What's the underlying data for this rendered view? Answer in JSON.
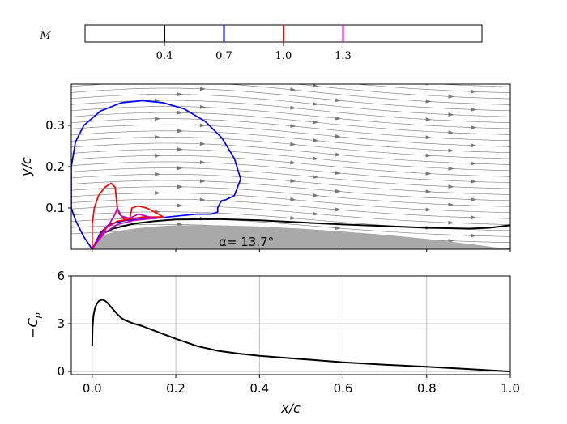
{
  "colorbar": {
    "label": "M",
    "entries": [
      {
        "value": 0.4,
        "label": "0.4",
        "color": "#000000"
      },
      {
        "value": 0.7,
        "label": "0.7",
        "color": "#0000ff"
      },
      {
        "value": 1.0,
        "label": "1.0",
        "color": "#ff0000"
      },
      {
        "value": 1.3,
        "label": "1.3",
        "color": "#bf00bf"
      }
    ],
    "range": [
      0.0,
      2.0
    ]
  },
  "chart_data": [
    {
      "type": "line",
      "title": "",
      "xlabel": "",
      "ylabel": "y/c",
      "xlim": [
        -0.05,
        1.0
      ],
      "ylim": [
        0.0,
        0.4
      ],
      "xticks": [
        0.0,
        0.2,
        0.4,
        0.6,
        0.8,
        1.0
      ],
      "yticks": [
        0.1,
        0.2,
        0.3
      ],
      "ytick_labels": [
        "0.1",
        "0.2",
        "0.3"
      ],
      "annotation": "α= 13.7°",
      "airfoil_color": "#a9a9a9",
      "streamline_color": "#555555",
      "airfoil_upper": [
        [
          0.0,
          0.0
        ],
        [
          0.01,
          0.022
        ],
        [
          0.03,
          0.035
        ],
        [
          0.06,
          0.044
        ],
        [
          0.1,
          0.05
        ],
        [
          0.15,
          0.055
        ],
        [
          0.2,
          0.058
        ],
        [
          0.3,
          0.058
        ],
        [
          0.4,
          0.055
        ],
        [
          0.5,
          0.05
        ],
        [
          0.6,
          0.043
        ],
        [
          0.7,
          0.035
        ],
        [
          0.8,
          0.025
        ],
        [
          0.9,
          0.013
        ],
        [
          1.0,
          0.0
        ]
      ],
      "series": [
        {
          "mach": 0.4,
          "color": "#000000",
          "points": [
            [
              0.0,
              0.0
            ],
            [
              0.02,
              0.035
            ],
            [
              0.05,
              0.05
            ],
            [
              0.1,
              0.062
            ],
            [
              0.15,
              0.068
            ],
            [
              0.2,
              0.072
            ],
            [
              0.3,
              0.073
            ],
            [
              0.4,
              0.07
            ],
            [
              0.5,
              0.065
            ],
            [
              0.6,
              0.06
            ],
            [
              0.7,
              0.056
            ],
            [
              0.8,
              0.052
            ],
            [
              0.9,
              0.05
            ],
            [
              0.95,
              0.052
            ],
            [
              1.0,
              0.058
            ]
          ]
        },
        {
          "mach": 0.7,
          "color": "#0000ff",
          "points": [
            [
              0.0,
              0.0
            ],
            [
              -0.02,
              0.03
            ],
            [
              -0.04,
              0.07
            ],
            [
              -0.05,
              0.1
            ],
            [
              -0.05,
              0.14
            ],
            [
              -0.05,
              0.2
            ],
            [
              -0.04,
              0.26
            ],
            [
              -0.02,
              0.3
            ],
            [
              0.02,
              0.335
            ],
            [
              0.07,
              0.355
            ],
            [
              0.12,
              0.36
            ],
            [
              0.17,
              0.355
            ],
            [
              0.22,
              0.34
            ],
            [
              0.27,
              0.31
            ],
            [
              0.31,
              0.27
            ],
            [
              0.34,
              0.22
            ],
            [
              0.355,
              0.17
            ],
            [
              0.34,
              0.13
            ],
            [
              0.32,
              0.12
            ],
            [
              0.31,
              0.118
            ],
            [
              0.305,
              0.11
            ],
            [
              0.3,
              0.1
            ],
            [
              0.3,
              0.09
            ],
            [
              0.285,
              0.085
            ],
            [
              0.25,
              0.085
            ],
            [
              0.2,
              0.08
            ],
            [
              0.15,
              0.075
            ],
            [
              0.08,
              0.07
            ],
            [
              0.04,
              0.06
            ],
            [
              0.02,
              0.04
            ],
            [
              0.0,
              0.0
            ]
          ]
        },
        {
          "mach": 1.0,
          "color": "#ff0000",
          "points": [
            [
              0.0,
              0.0
            ],
            [
              0.0,
              0.06
            ],
            [
              0.005,
              0.1
            ],
            [
              0.015,
              0.13
            ],
            [
              0.03,
              0.15
            ],
            [
              0.045,
              0.16
            ],
            [
              0.055,
              0.15
            ],
            [
              0.06,
              0.1
            ],
            [
              0.065,
              0.085
            ],
            [
              0.08,
              0.07
            ],
            [
              0.09,
              0.075
            ],
            [
              0.095,
              0.1
            ],
            [
              0.11,
              0.105
            ],
            [
              0.13,
              0.1
            ],
            [
              0.15,
              0.09
            ],
            [
              0.17,
              0.078
            ],
            [
              0.12,
              0.078
            ],
            [
              0.06,
              0.068
            ],
            [
              0.03,
              0.05
            ],
            [
              0.0,
              0.0
            ]
          ]
        },
        {
          "mach": 1.3,
          "color": "#bf00bf",
          "points": [
            [
              0.0,
              0.0
            ],
            [
              0.02,
              0.03
            ],
            [
              0.04,
              0.06
            ],
            [
              0.055,
              0.085
            ],
            [
              0.06,
              0.1
            ],
            [
              0.07,
              0.08
            ],
            [
              0.09,
              0.075
            ],
            [
              0.1,
              0.08
            ],
            [
              0.11,
              0.085
            ],
            [
              0.13,
              0.08
            ],
            [
              0.15,
              0.075
            ],
            [
              0.1,
              0.07
            ],
            [
              0.06,
              0.06
            ],
            [
              0.03,
              0.04
            ],
            [
              0.01,
              0.015
            ],
            [
              0.0,
              0.0
            ]
          ]
        }
      ]
    },
    {
      "type": "line",
      "title": "",
      "xlabel": "x/c",
      "ylabel": "−C_p",
      "xlim": [
        -0.05,
        1.0
      ],
      "ylim": [
        -0.2,
        6.0
      ],
      "grid": true,
      "xticks": [
        0.0,
        0.2,
        0.4,
        0.6,
        0.8,
        1.0
      ],
      "xtick_labels": [
        "0.0",
        "0.2",
        "0.4",
        "0.6",
        "0.8",
        "1.0"
      ],
      "yticks": [
        0,
        3,
        6
      ],
      "ytick_labels": [
        "0",
        "3",
        "6"
      ],
      "series": [
        {
          "color": "#000000",
          "x": [
            0.0,
            0.001,
            0.003,
            0.006,
            0.01,
            0.015,
            0.02,
            0.025,
            0.03,
            0.035,
            0.04,
            0.05,
            0.06,
            0.07,
            0.08,
            0.1,
            0.12,
            0.15,
            0.2,
            0.25,
            0.3,
            0.35,
            0.4,
            0.5,
            0.6,
            0.7,
            0.8,
            0.9,
            1.0
          ],
          "y": [
            1.6,
            2.8,
            3.5,
            3.9,
            4.2,
            4.4,
            4.48,
            4.5,
            4.45,
            4.35,
            4.2,
            3.9,
            3.6,
            3.35,
            3.2,
            3.0,
            2.85,
            2.55,
            2.05,
            1.6,
            1.3,
            1.12,
            0.98,
            0.78,
            0.58,
            0.42,
            0.3,
            0.15,
            0.0
          ]
        }
      ]
    }
  ]
}
